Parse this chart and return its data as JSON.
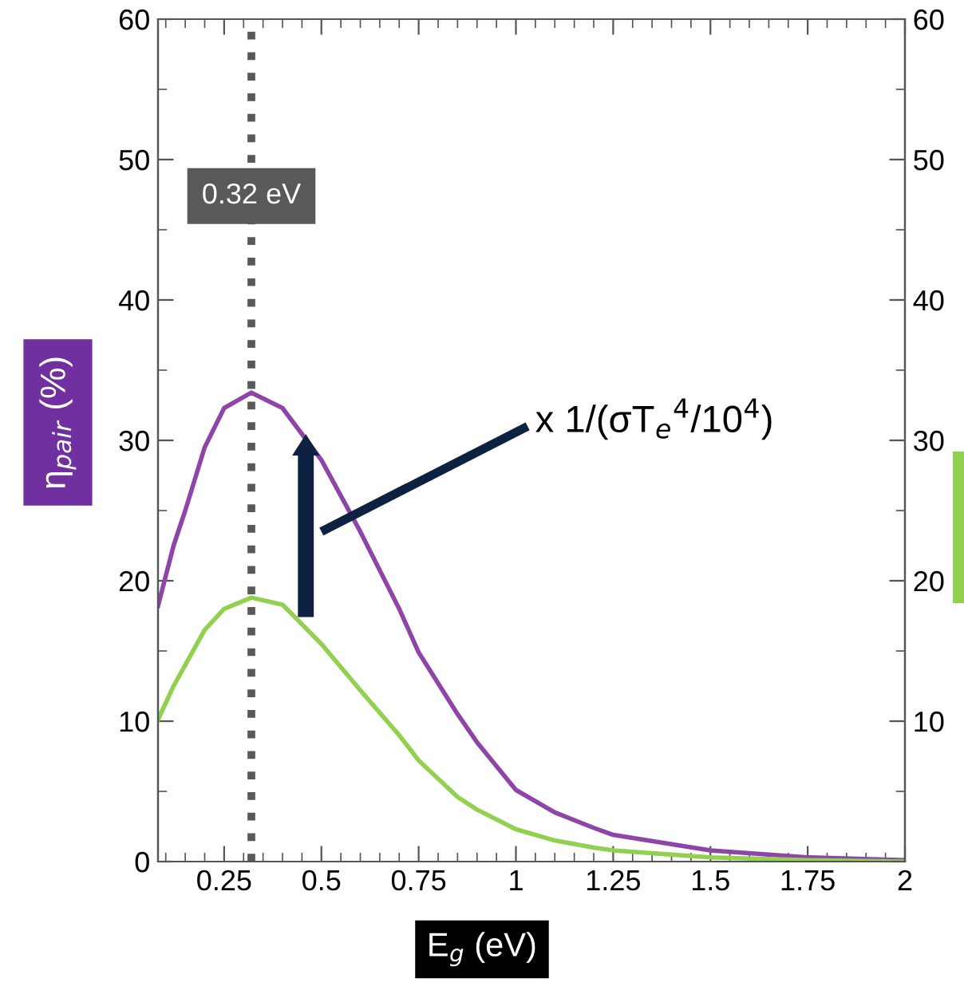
{
  "chart_data": {
    "type": "line",
    "xlabel": "E$_{g}$ (eV)",
    "ylabel": "η$_{pair}$ (%)",
    "x": [
      0.08,
      0.12,
      0.15,
      0.2,
      0.25,
      0.32,
      0.4,
      0.5,
      0.6,
      0.7,
      0.75,
      0.85,
      0.9,
      1.0,
      1.1,
      1.2,
      1.25,
      1.5,
      1.75,
      2.0
    ],
    "series": [
      {
        "color": "#8e44a8",
        "values": [
          18.2,
          22.5,
          25.0,
          29.5,
          32.3,
          33.4,
          32.3,
          28.6,
          23.5,
          18.0,
          14.9,
          10.5,
          8.5,
          5.1,
          3.5,
          2.4,
          1.9,
          0.8,
          0.3,
          0.1
        ]
      },
      {
        "color": "#92d050",
        "values": [
          10.1,
          12.5,
          14.0,
          16.5,
          18.0,
          18.8,
          18.3,
          15.5,
          12.2,
          9.0,
          7.2,
          4.6,
          3.7,
          2.3,
          1.5,
          1.0,
          0.8,
          0.3,
          0.1,
          0.0
        ]
      }
    ],
    "xlim": [
      0.08,
      2
    ],
    "xticks": [
      0.25,
      0.5,
      0.75,
      1,
      1.25,
      1.5,
      1.75,
      2
    ],
    "ylim": [
      0,
      60
    ],
    "yticks": [
      0,
      10,
      20,
      30,
      40,
      50,
      60
    ],
    "y2lim": [
      0,
      60
    ],
    "y2ticks": [
      {
        "value": 0,
        "label": null
      },
      10,
      20,
      30,
      40,
      50,
      60
    ],
    "ref_lines": [
      {
        "axis": "x",
        "value": 0.32,
        "label": "0.32 eV",
        "color": "#595959",
        "line_style": "dotted"
      }
    ],
    "annotations": [
      "x 1/(σT$_{e}$$^{4}$/10$^{4}$)"
    ],
    "grid": false,
    "marker": "none",
    "line_style": "solid"
  }
}
